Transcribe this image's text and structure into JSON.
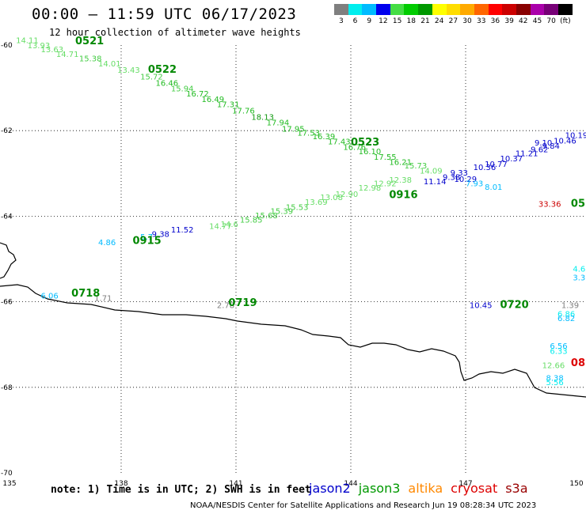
{
  "title": "00:00 – 11:59 UTC 06/17/2023",
  "subtitle": "12 hour collection of altimeter wave heights",
  "note": "note:  1) Time is in UTC; 2) SWH is in feet",
  "footer": "NOAA/NESDIS Center for Satellite Applications and Research   Jun 19 08:28:34 UTC 2023",
  "satellites": [
    {
      "name": "jason2",
      "color": "#0000cc"
    },
    {
      "name": "jason3",
      "color": "#009900"
    },
    {
      "name": "altika",
      "color": "#ff8800"
    },
    {
      "name": "cryosat",
      "color": "#dd0000"
    },
    {
      "name": "s3a",
      "color": "#990000"
    }
  ],
  "legend": {
    "colors": [
      "#7f7f7f",
      "#00eeee",
      "#00bbff",
      "#0000ee",
      "#44dd44",
      "#00cc00",
      "#009900",
      "#ffff00",
      "#ffdd00",
      "#ffaa00",
      "#ff6600",
      "#ff0000",
      "#cc0000",
      "#880000",
      "#aa00aa",
      "#770077",
      "#000000"
    ],
    "labels": [
      "3",
      "6",
      "9",
      "12",
      "15",
      "18",
      "21",
      "24",
      "27",
      "30",
      "33",
      "36",
      "39",
      "42",
      "45",
      "70",
      "(ft)"
    ]
  },
  "axes": {
    "lon_ticks": [
      "135",
      "138",
      "141",
      "144",
      "147",
      "150"
    ],
    "lat_ticks": [
      "-60",
      "-62",
      "-64",
      "-66",
      "-68",
      "-70"
    ]
  },
  "track_labels": [
    {
      "text": "0521",
      "lon": 136.8,
      "lat": -59.98,
      "color": "#008800"
    },
    {
      "text": "0522",
      "lon": 138.7,
      "lat": -60.65,
      "color": "#008800"
    },
    {
      "text": "0523",
      "lon": 144.0,
      "lat": -62.35,
      "color": "#008800"
    },
    {
      "text": "0916",
      "lon": 145.0,
      "lat": -63.58,
      "color": "#008800"
    },
    {
      "text": "0915",
      "lon": 138.3,
      "lat": -64.65,
      "color": "#008800"
    },
    {
      "text": "0718",
      "lon": 136.7,
      "lat": -65.88,
      "color": "#008800"
    },
    {
      "text": "0719",
      "lon": 140.8,
      "lat": -66.1,
      "color": "#008800"
    },
    {
      "text": "0720",
      "lon": 147.9,
      "lat": -66.15,
      "color": "#008800"
    },
    {
      "text": "05",
      "lon": 149.75,
      "lat": -63.78,
      "color": "#008800"
    },
    {
      "text": "08",
      "lon": 149.75,
      "lat": -67.5,
      "color": "#dd0000"
    }
  ],
  "swh_points": [
    {
      "v": "14.11",
      "lon": 135.25,
      "lat": -59.95,
      "color": "#66dd66"
    },
    {
      "v": "13.93",
      "lon": 135.55,
      "lat": -60.07,
      "color": "#66dd66"
    },
    {
      "v": "13.63",
      "lon": 135.9,
      "lat": -60.17,
      "color": "#66dd66"
    },
    {
      "v": "14.71",
      "lon": 136.3,
      "lat": -60.28,
      "color": "#66dd66"
    },
    {
      "v": "15.38",
      "lon": 136.9,
      "lat": -60.38,
      "color": "#44cc44"
    },
    {
      "v": "14.01",
      "lon": 137.4,
      "lat": -60.5,
      "color": "#66dd66"
    },
    {
      "v": "13.43",
      "lon": 137.9,
      "lat": -60.65,
      "color": "#66dd66"
    },
    {
      "v": "15.72",
      "lon": 138.5,
      "lat": -60.8,
      "color": "#44cc44"
    },
    {
      "v": "16.46",
      "lon": 138.9,
      "lat": -60.95,
      "color": "#22bb22"
    },
    {
      "v": "15.94",
      "lon": 139.3,
      "lat": -61.08,
      "color": "#44cc44"
    },
    {
      "v": "16.72",
      "lon": 139.7,
      "lat": -61.2,
      "color": "#22bb22"
    },
    {
      "v": "16.49",
      "lon": 140.1,
      "lat": -61.33,
      "color": "#22bb22"
    },
    {
      "v": "17.31",
      "lon": 140.5,
      "lat": -61.45,
      "color": "#22bb22"
    },
    {
      "v": "17.76",
      "lon": 140.9,
      "lat": -61.6,
      "color": "#22bb22"
    },
    {
      "v": "18.13",
      "lon": 141.4,
      "lat": -61.75,
      "color": "#119911"
    },
    {
      "v": "17.94",
      "lon": 141.8,
      "lat": -61.88,
      "color": "#22bb22"
    },
    {
      "v": "17.95",
      "lon": 142.2,
      "lat": -62.02,
      "color": "#22bb22"
    },
    {
      "v": "17.53",
      "lon": 142.6,
      "lat": -62.12,
      "color": "#22bb22"
    },
    {
      "v": "16.39",
      "lon": 143.0,
      "lat": -62.2,
      "color": "#22bb22"
    },
    {
      "v": "17.43",
      "lon": 143.4,
      "lat": -62.32,
      "color": "#22bb22"
    },
    {
      "v": "16.76",
      "lon": 143.8,
      "lat": -62.45,
      "color": "#22bb22"
    },
    {
      "v": "16.10",
      "lon": 144.2,
      "lat": -62.55,
      "color": "#22bb22"
    },
    {
      "v": "17.55",
      "lon": 144.6,
      "lat": -62.68,
      "color": "#22bb22"
    },
    {
      "v": "16.21",
      "lon": 145.0,
      "lat": -62.8,
      "color": "#22bb22"
    },
    {
      "v": "15.73",
      "lon": 145.4,
      "lat": -62.88,
      "color": "#44cc44"
    },
    {
      "v": "14.09",
      "lon": 145.8,
      "lat": -63.0,
      "color": "#66dd66"
    },
    {
      "v": "11.14",
      "lon": 145.9,
      "lat": -63.25,
      "color": "#0000cc"
    },
    {
      "v": "9.38",
      "lon": 146.4,
      "lat": -63.15,
      "color": "#0000cc"
    },
    {
      "v": "10.29",
      "lon": 146.7,
      "lat": -63.2,
      "color": "#0000cc"
    },
    {
      "v": "9.33",
      "lon": 146.6,
      "lat": -63.05,
      "color": "#0000cc"
    },
    {
      "v": "7.93",
      "lon": 147.0,
      "lat": -63.3,
      "color": "#00bbff"
    },
    {
      "v": "8.01",
      "lon": 147.5,
      "lat": -63.38,
      "color": "#00bbff"
    },
    {
      "v": "10.36",
      "lon": 147.2,
      "lat": -62.92,
      "color": "#0000cc"
    },
    {
      "v": "10.77",
      "lon": 147.5,
      "lat": -62.85,
      "color": "#0000cc"
    },
    {
      "v": "10.37",
      "lon": 147.9,
      "lat": -62.72,
      "color": "#0000cc"
    },
    {
      "v": "11.21",
      "lon": 148.3,
      "lat": -62.6,
      "color": "#0000cc"
    },
    {
      "v": "9.62",
      "lon": 148.7,
      "lat": -62.5,
      "color": "#0000cc"
    },
    {
      "v": "9.84",
      "lon": 149.0,
      "lat": -62.42,
      "color": "#0000cc"
    },
    {
      "v": "9.10",
      "lon": 148.8,
      "lat": -62.35,
      "color": "#0000cc"
    },
    {
      "v": "10.46",
      "lon": 149.3,
      "lat": -62.3,
      "color": "#0000cc"
    },
    {
      "v": "10.19",
      "lon": 149.6,
      "lat": -62.17,
      "color": "#0000cc"
    },
    {
      "v": "12.98",
      "lon": 144.2,
      "lat": -63.4,
      "color": "#66dd66"
    },
    {
      "v": "12.92",
      "lon": 144.6,
      "lat": -63.3,
      "color": "#66dd66"
    },
    {
      "v": "12.38",
      "lon": 145.0,
      "lat": -63.22,
      "color": "#66dd66"
    },
    {
      "v": "12.90",
      "lon": 143.6,
      "lat": -63.55,
      "color": "#66dd66"
    },
    {
      "v": "13.08",
      "lon": 143.2,
      "lat": -63.62,
      "color": "#66dd66"
    },
    {
      "v": "13.69",
      "lon": 142.8,
      "lat": -63.73,
      "color": "#66dd66"
    },
    {
      "v": "15.53",
      "lon": 142.3,
      "lat": -63.85,
      "color": "#44cc44"
    },
    {
      "v": "15.39",
      "lon": 141.9,
      "lat": -63.95,
      "color": "#44cc44"
    },
    {
      "v": "15.68",
      "lon": 141.5,
      "lat": -64.05,
      "color": "#44cc44"
    },
    {
      "v": "15.85",
      "lon": 141.1,
      "lat": -64.15,
      "color": "#44cc44"
    },
    {
      "v": "14.77",
      "lon": 140.3,
      "lat": -64.3,
      "color": "#66dd66"
    },
    {
      "v": "14.6",
      "lon": 140.6,
      "lat": -64.25,
      "color": "#66dd66"
    },
    {
      "v": "11.52",
      "lon": 139.3,
      "lat": -64.38,
      "color": "#0000cc"
    },
    {
      "v": "9.38",
      "lon": 138.8,
      "lat": -64.48,
      "color": "#0000cc"
    },
    {
      "v": "5.7",
      "lon": 138.5,
      "lat": -64.55,
      "color": "#00bbff"
    },
    {
      "v": "4.86",
      "lon": 137.4,
      "lat": -64.68,
      "color": "#00bbff"
    },
    {
      "v": "6.06",
      "lon": 135.9,
      "lat": -65.92,
      "color": "#00bbff"
    },
    {
      "v": "1.71",
      "lon": 137.3,
      "lat": -65.98,
      "color": "#7f7f7f"
    },
    {
      "v": "2.78",
      "lon": 140.5,
      "lat": -66.15,
      "color": "#7f7f7f"
    },
    {
      "v": "10.45",
      "lon": 147.1,
      "lat": -66.15,
      "color": "#0000cc"
    },
    {
      "v": "1.39",
      "lon": 149.5,
      "lat": -66.15,
      "color": "#7f7f7f"
    },
    {
      "v": "33.36",
      "lon": 148.9,
      "lat": -63.78,
      "color": "#cc0000"
    },
    {
      "v": "4.6",
      "lon": 149.8,
      "lat": -65.3,
      "color": "#00eeee"
    },
    {
      "v": "3.3",
      "lon": 149.8,
      "lat": -65.5,
      "color": "#00bbff"
    },
    {
      "v": "6.86",
      "lon": 149.4,
      "lat": -66.35,
      "color": "#00eeee"
    },
    {
      "v": "6.82",
      "lon": 149.4,
      "lat": -66.45,
      "color": "#00bbff"
    },
    {
      "v": "6.56",
      "lon": 149.2,
      "lat": -67.1,
      "color": "#00bbff"
    },
    {
      "v": "6.33",
      "lon": 149.2,
      "lat": -67.22,
      "color": "#00eeee"
    },
    {
      "v": "12.66",
      "lon": 149.0,
      "lat": -67.55,
      "color": "#66dd66"
    },
    {
      "v": "8.38",
      "lon": 149.1,
      "lat": -67.85,
      "color": "#00bbff"
    },
    {
      "v": "5.56",
      "lon": 149.1,
      "lat": -67.95,
      "color": "#00eeee"
    }
  ]
}
